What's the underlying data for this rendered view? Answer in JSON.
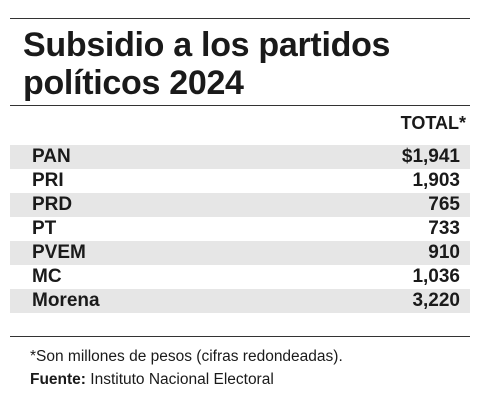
{
  "title": "Subsidio a los partidos políticos 2024",
  "column_header": "TOTAL*",
  "rows": [
    {
      "party": "PAN",
      "value": "$1,941"
    },
    {
      "party": "PRI",
      "value": "1,903"
    },
    {
      "party": "PRD",
      "value": "765"
    },
    {
      "party": "PT",
      "value": "733"
    },
    {
      "party": "PVEM",
      "value": "910"
    },
    {
      "party": "MC",
      "value": "1,036"
    },
    {
      "party": "Morena",
      "value": "3,220"
    }
  ],
  "footnote": "*Son millones de pesos (cifras redondeadas).",
  "source": {
    "label": "Fuente:",
    "text": " Instituto Nacional Electoral"
  },
  "colors": {
    "shade": "#e6e6e6",
    "text": "#1a1a1a"
  }
}
